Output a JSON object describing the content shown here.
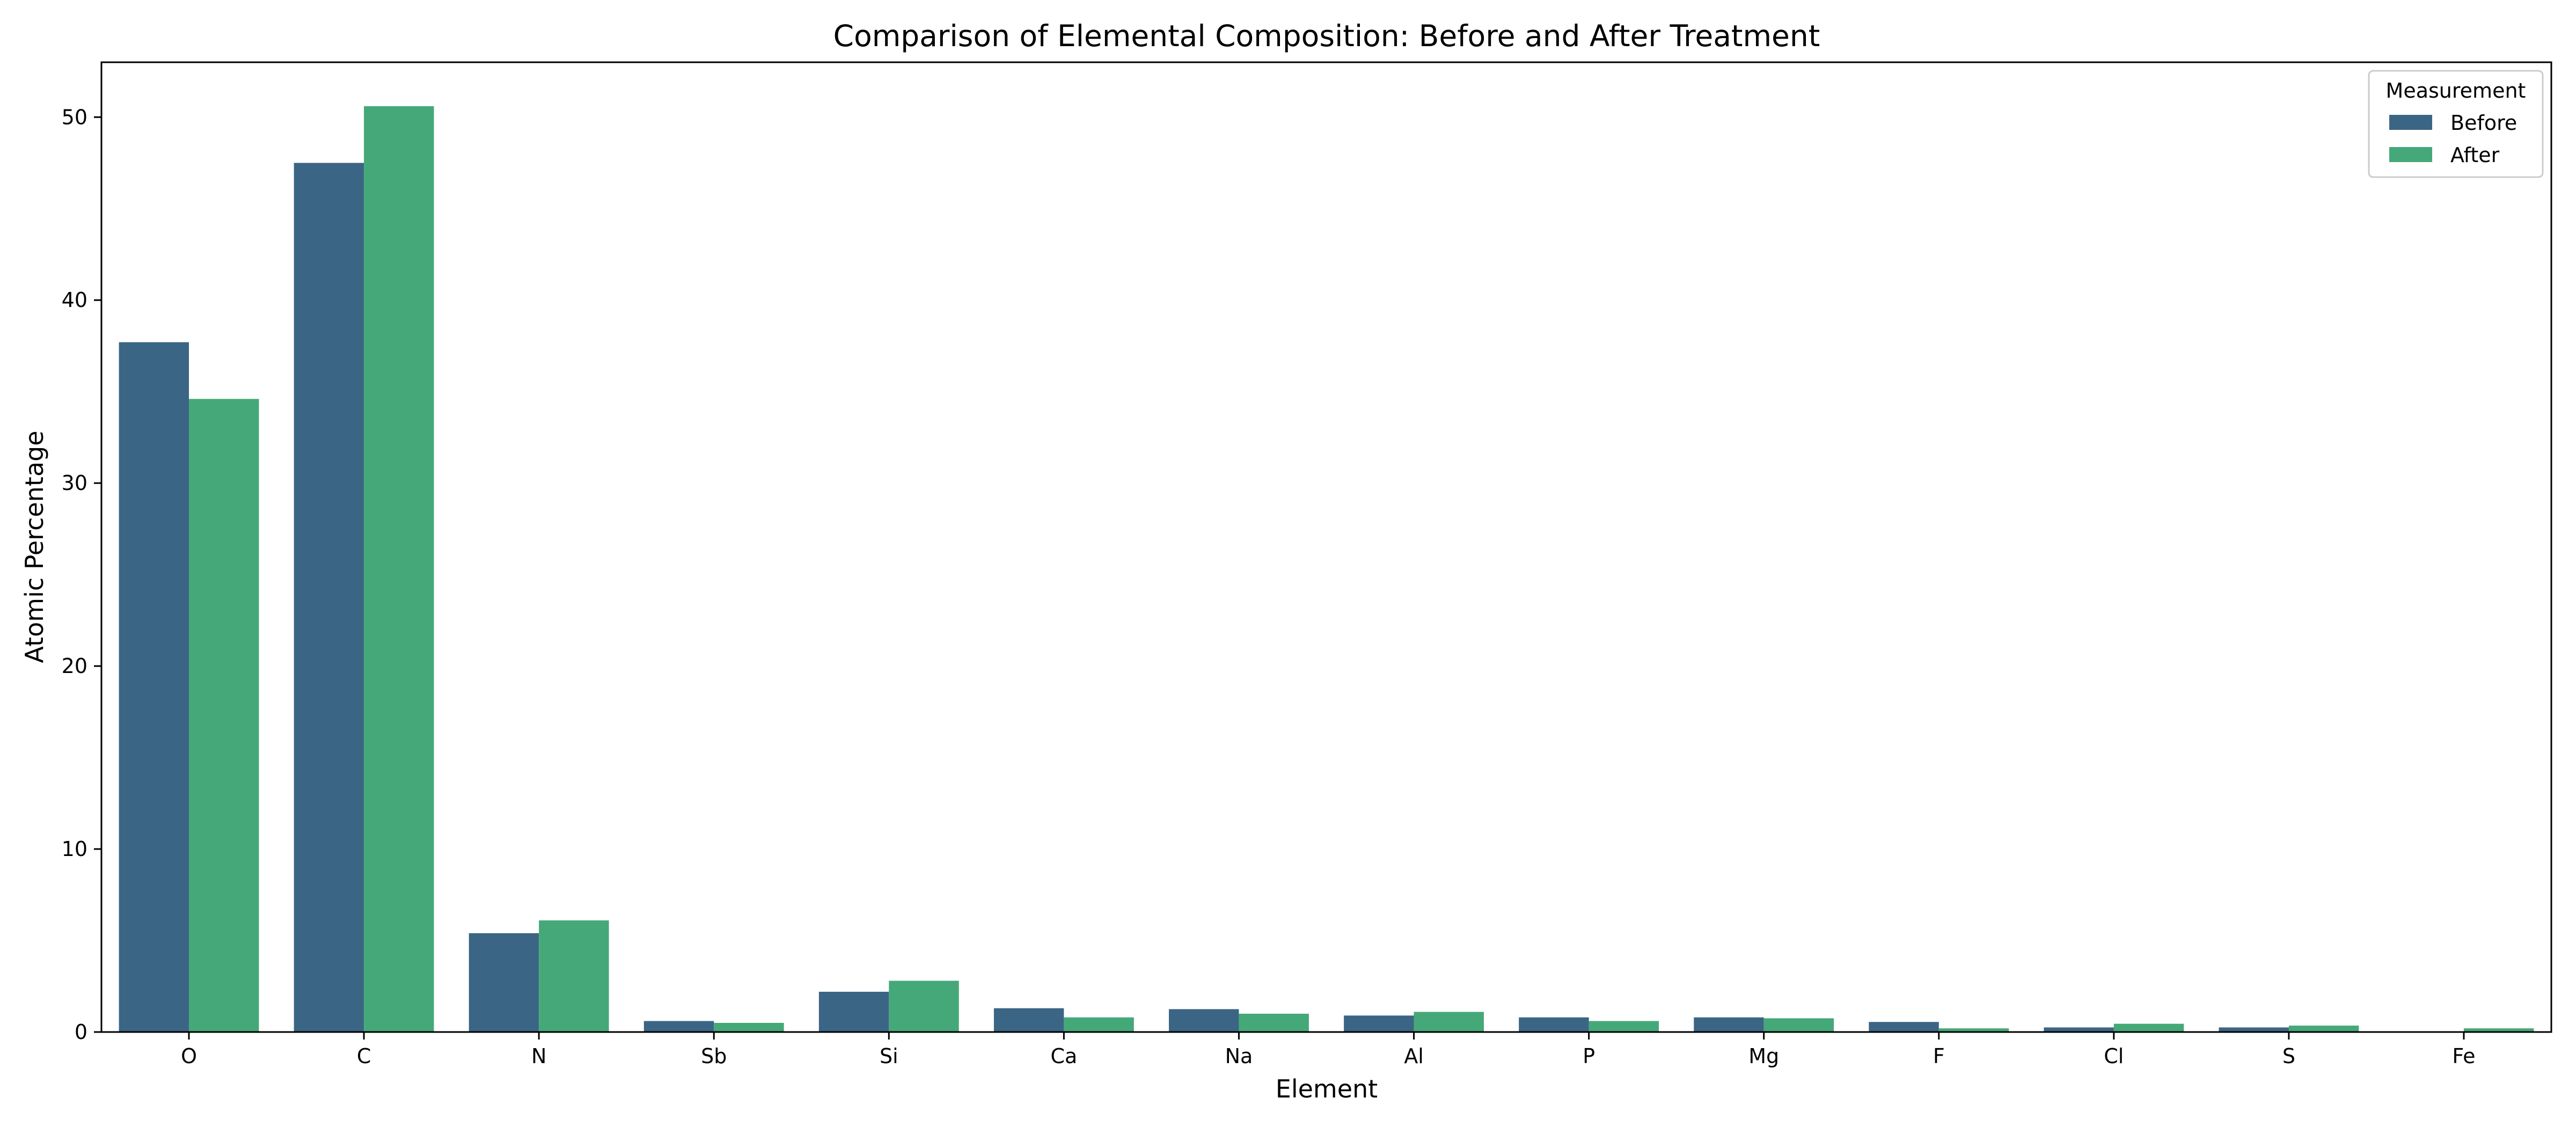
{
  "chart_data": {
    "type": "bar",
    "title": "Comparison of Elemental Composition: Before and After Treatment",
    "xlabel": "Element",
    "ylabel": "Atomic Percentage",
    "categories": [
      "O",
      "C",
      "N",
      "Sb",
      "Si",
      "Ca",
      "Na",
      "Al",
      "P",
      "Mg",
      "F",
      "Cl",
      "S",
      "Fe"
    ],
    "series": [
      {
        "name": "Before",
        "color": "#3b6584",
        "values": [
          37.7,
          47.5,
          5.4,
          0.6,
          2.2,
          1.3,
          1.25,
          0.9,
          0.8,
          0.8,
          0.55,
          0.25,
          0.25,
          0.0
        ]
      },
      {
        "name": "After",
        "color": "#45a878",
        "values": [
          34.6,
          50.6,
          6.1,
          0.5,
          2.8,
          0.8,
          1.0,
          1.1,
          0.6,
          0.75,
          0.2,
          0.45,
          0.35,
          0.2
        ]
      }
    ],
    "ylim": [
      0,
      53
    ],
    "yticks": [
      0,
      10,
      20,
      30,
      40,
      50
    ],
    "grid": false,
    "legend": {
      "title": "Measurement",
      "placement": "top-right"
    }
  }
}
